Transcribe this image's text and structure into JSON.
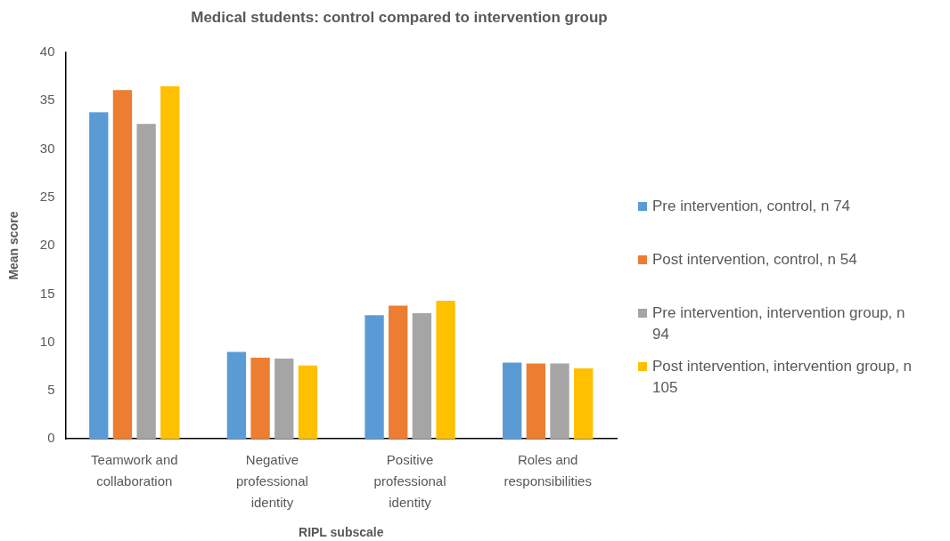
{
  "chart_data": {
    "type": "bar",
    "title": "Medical students: control compared to intervention group",
    "xlabel": "RIPL subscale",
    "ylabel": "Mean score",
    "categories": [
      "Teamwork and collaboration",
      "Negative professional identity",
      "Positive professional identity",
      "Roles and responsibilities"
    ],
    "series": [
      {
        "name": "Pre intervention, control, n 74",
        "color": "#5b9bd5",
        "values": [
          33.8,
          9.0,
          12.8,
          7.9
        ]
      },
      {
        "name": "Post intervention, control, n 54",
        "color": "#ed7d31",
        "values": [
          36.1,
          8.4,
          13.8,
          7.8
        ]
      },
      {
        "name": "Pre intervention, intervention group, n 94",
        "color": "#a5a5a5",
        "values": [
          32.6,
          8.3,
          13.0,
          7.8
        ]
      },
      {
        "name": "Post intervention, intervention group, n 105",
        "color": "#ffc000",
        "values": [
          36.5,
          7.6,
          14.3,
          7.3
        ]
      }
    ],
    "ylim": [
      0,
      40
    ],
    "yticks": [
      0,
      5,
      10,
      15,
      20,
      25,
      30,
      35,
      40
    ],
    "grid": false,
    "legend": "right"
  }
}
